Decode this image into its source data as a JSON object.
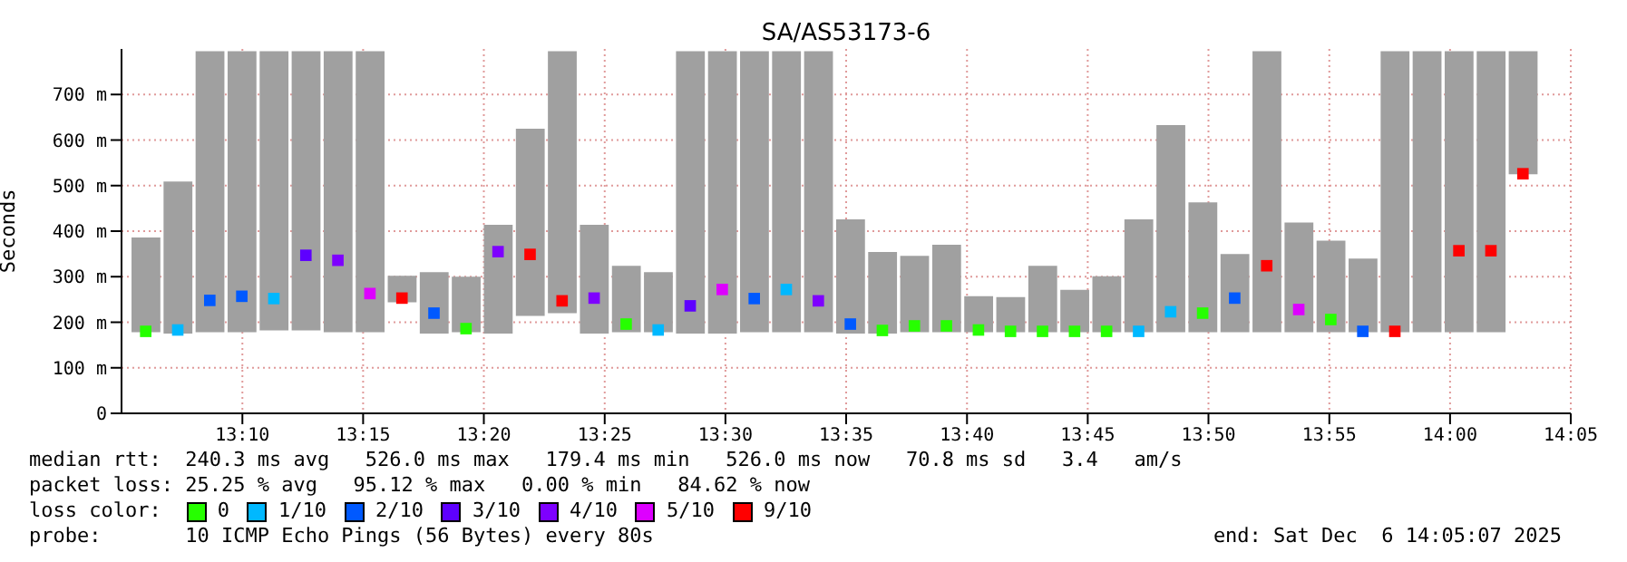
{
  "chart_data": {
    "type": "bar",
    "title": "SA/AS53173-6",
    "ylabel": "Seconds",
    "legend_title": "loss color:",
    "legend": "bottom",
    "grid": true,
    "marker": "square",
    "xlim": [
      13.0833,
      14.0833
    ],
    "xticks": [
      {
        "value": 13.1667,
        "label": "13:10"
      },
      {
        "value": 13.25,
        "label": "13:15"
      },
      {
        "value": 13.3333,
        "label": "13:20"
      },
      {
        "value": 13.4167,
        "label": "13:25"
      },
      {
        "value": 13.5,
        "label": "13:30"
      },
      {
        "value": 13.5833,
        "label": "13:35"
      },
      {
        "value": 13.6667,
        "label": "13:40"
      },
      {
        "value": 13.75,
        "label": "13:45"
      },
      {
        "value": 13.8333,
        "label": "13:50"
      },
      {
        "value": 13.9167,
        "label": "13:55"
      },
      {
        "value": 14,
        "label": "14:00"
      },
      {
        "value": 14.0833,
        "label": "14:05"
      }
    ],
    "ylim": [
      0,
      800
    ],
    "yticks": [
      0,
      {
        "value": 100,
        "label": "100 m"
      },
      {
        "value": 200,
        "label": "200 m"
      },
      {
        "value": 300,
        "label": "300 m"
      },
      {
        "value": 400,
        "label": "400 m"
      },
      {
        "value": 500,
        "label": "500 m"
      },
      {
        "value": 600,
        "label": "600 m"
      },
      {
        "value": 700,
        "label": "700 m"
      }
    ],
    "x": [
      13.1,
      13.1221,
      13.1442,
      13.1663,
      13.1884,
      13.2105,
      13.2326,
      13.2547,
      13.2768,
      13.2989,
      13.321,
      13.3431,
      13.3652,
      13.3873,
      13.4094,
      13.4315,
      13.4536,
      13.4757,
      13.4978,
      13.5199,
      13.542,
      13.5641,
      13.5862,
      13.6083,
      13.6304,
      13.6525,
      13.6746,
      13.6967,
      13.7188,
      13.7409,
      13.763,
      13.7851,
      13.8072,
      13.8293,
      13.8514,
      13.8735,
      13.8956,
      13.9177,
      13.9398,
      13.9619,
      13.984,
      14.0061,
      14.0282,
      14.0503
    ],
    "series": [
      {
        "color": "#a0a0a0",
        "base": [
          178,
          175,
          178,
          178,
          182,
          182,
          178,
          178,
          244,
          175,
          178,
          175,
          214,
          220,
          175,
          178,
          178,
          175,
          175,
          178,
          178,
          178,
          175,
          175,
          178,
          178,
          178,
          178,
          178,
          178,
          178,
          178,
          178,
          178,
          178,
          178,
          178,
          178,
          178,
          178,
          178,
          178,
          178,
          525
        ],
        "values": [
          208,
          334,
          617,
          617,
          613,
          613,
          617,
          617,
          58,
          135,
          122,
          239,
          411,
          575,
          239,
          146,
          132,
          620,
          620,
          617,
          617,
          617,
          251,
          179,
          168,
          192,
          79,
          77,
          146,
          93,
          123,
          248,
          455,
          285,
          172,
          617,
          241,
          201,
          162,
          617,
          617,
          617,
          617,
          270
        ]
      },
      {
        "type": "scatter",
        "name": "0",
        "color": "#26ff00",
        "values": [
          180,
          null,
          null,
          null,
          null,
          null,
          null,
          null,
          null,
          null,
          186,
          null,
          null,
          null,
          null,
          196,
          null,
          null,
          null,
          null,
          null,
          null,
          null,
          182,
          192,
          192,
          183,
          180,
          180,
          180,
          180,
          null,
          null,
          220,
          null,
          null,
          null,
          206,
          null,
          null,
          null,
          null,
          null,
          null
        ]
      },
      {
        "type": "scatter",
        "name": "1/10",
        "color": "#00b8ff",
        "values": [
          null,
          183,
          null,
          null,
          252,
          null,
          null,
          null,
          null,
          null,
          null,
          null,
          null,
          null,
          null,
          null,
          183,
          null,
          null,
          null,
          272,
          null,
          null,
          null,
          null,
          null,
          null,
          null,
          null,
          null,
          null,
          180,
          223,
          null,
          null,
          null,
          null,
          null,
          null,
          null,
          null,
          null,
          null,
          null
        ]
      },
      {
        "type": "scatter",
        "name": "2/10",
        "color": "#0059ff",
        "values": [
          null,
          null,
          248,
          257,
          null,
          null,
          null,
          null,
          null,
          220,
          null,
          null,
          null,
          null,
          null,
          null,
          null,
          null,
          null,
          252,
          null,
          null,
          196,
          null,
          null,
          null,
          null,
          null,
          null,
          null,
          null,
          null,
          null,
          null,
          253,
          null,
          null,
          null,
          180,
          null,
          null,
          null,
          null,
          null
        ]
      },
      {
        "type": "scatter",
        "name": "3/10",
        "color": "#5e00ff",
        "values": [
          null,
          null,
          null,
          null,
          null,
          347,
          null,
          null,
          null,
          null,
          null,
          null,
          null,
          null,
          null,
          null,
          null,
          236,
          null,
          null,
          null,
          null,
          null,
          null,
          null,
          null,
          null,
          null,
          null,
          null,
          null,
          null,
          null,
          null,
          null,
          null,
          null,
          null,
          null,
          null,
          null,
          null,
          null,
          null
        ]
      },
      {
        "type": "scatter",
        "name": "4/10",
        "color": "#7e00ff",
        "values": [
          null,
          null,
          null,
          null,
          null,
          null,
          336,
          null,
          null,
          null,
          null,
          355,
          null,
          null,
          253,
          null,
          null,
          null,
          null,
          null,
          null,
          247,
          null,
          null,
          null,
          null,
          null,
          null,
          null,
          null,
          null,
          null,
          null,
          null,
          null,
          null,
          null,
          null,
          null,
          null,
          null,
          null,
          null,
          null
        ]
      },
      {
        "type": "scatter",
        "name": "5/10",
        "color": "#dd00ff",
        "values": [
          null,
          null,
          null,
          null,
          null,
          null,
          null,
          263,
          null,
          null,
          null,
          null,
          null,
          null,
          null,
          null,
          null,
          null,
          272,
          null,
          null,
          null,
          null,
          null,
          null,
          null,
          null,
          null,
          null,
          null,
          null,
          null,
          null,
          null,
          null,
          null,
          228,
          null,
          null,
          null,
          null,
          null,
          null,
          null
        ]
      },
      {
        "type": "scatter",
        "name": "9/10",
        "color": "#ff0000",
        "values": [
          null,
          null,
          null,
          null,
          null,
          null,
          null,
          null,
          253,
          null,
          null,
          null,
          349,
          247,
          null,
          null,
          null,
          null,
          null,
          null,
          null,
          null,
          null,
          null,
          null,
          null,
          null,
          null,
          null,
          null,
          null,
          null,
          null,
          null,
          null,
          324,
          null,
          null,
          null,
          180,
          null,
          357,
          357,
          526
        ]
      }
    ],
    "annotations": [
      "median rtt:  240.3 ms avg   526.0 ms max   179.4 ms min   526.0 ms now   70.8 ms sd   3.4   am/s",
      "packet loss: 25.25 % avg   95.12 % max   0.00 % min   84.62 % now",
      "probe:       10 ICMP Echo Pings (56 Bytes) every 80s",
      "end: Sat Dec  6 14:05:07 2025"
    ]
  }
}
